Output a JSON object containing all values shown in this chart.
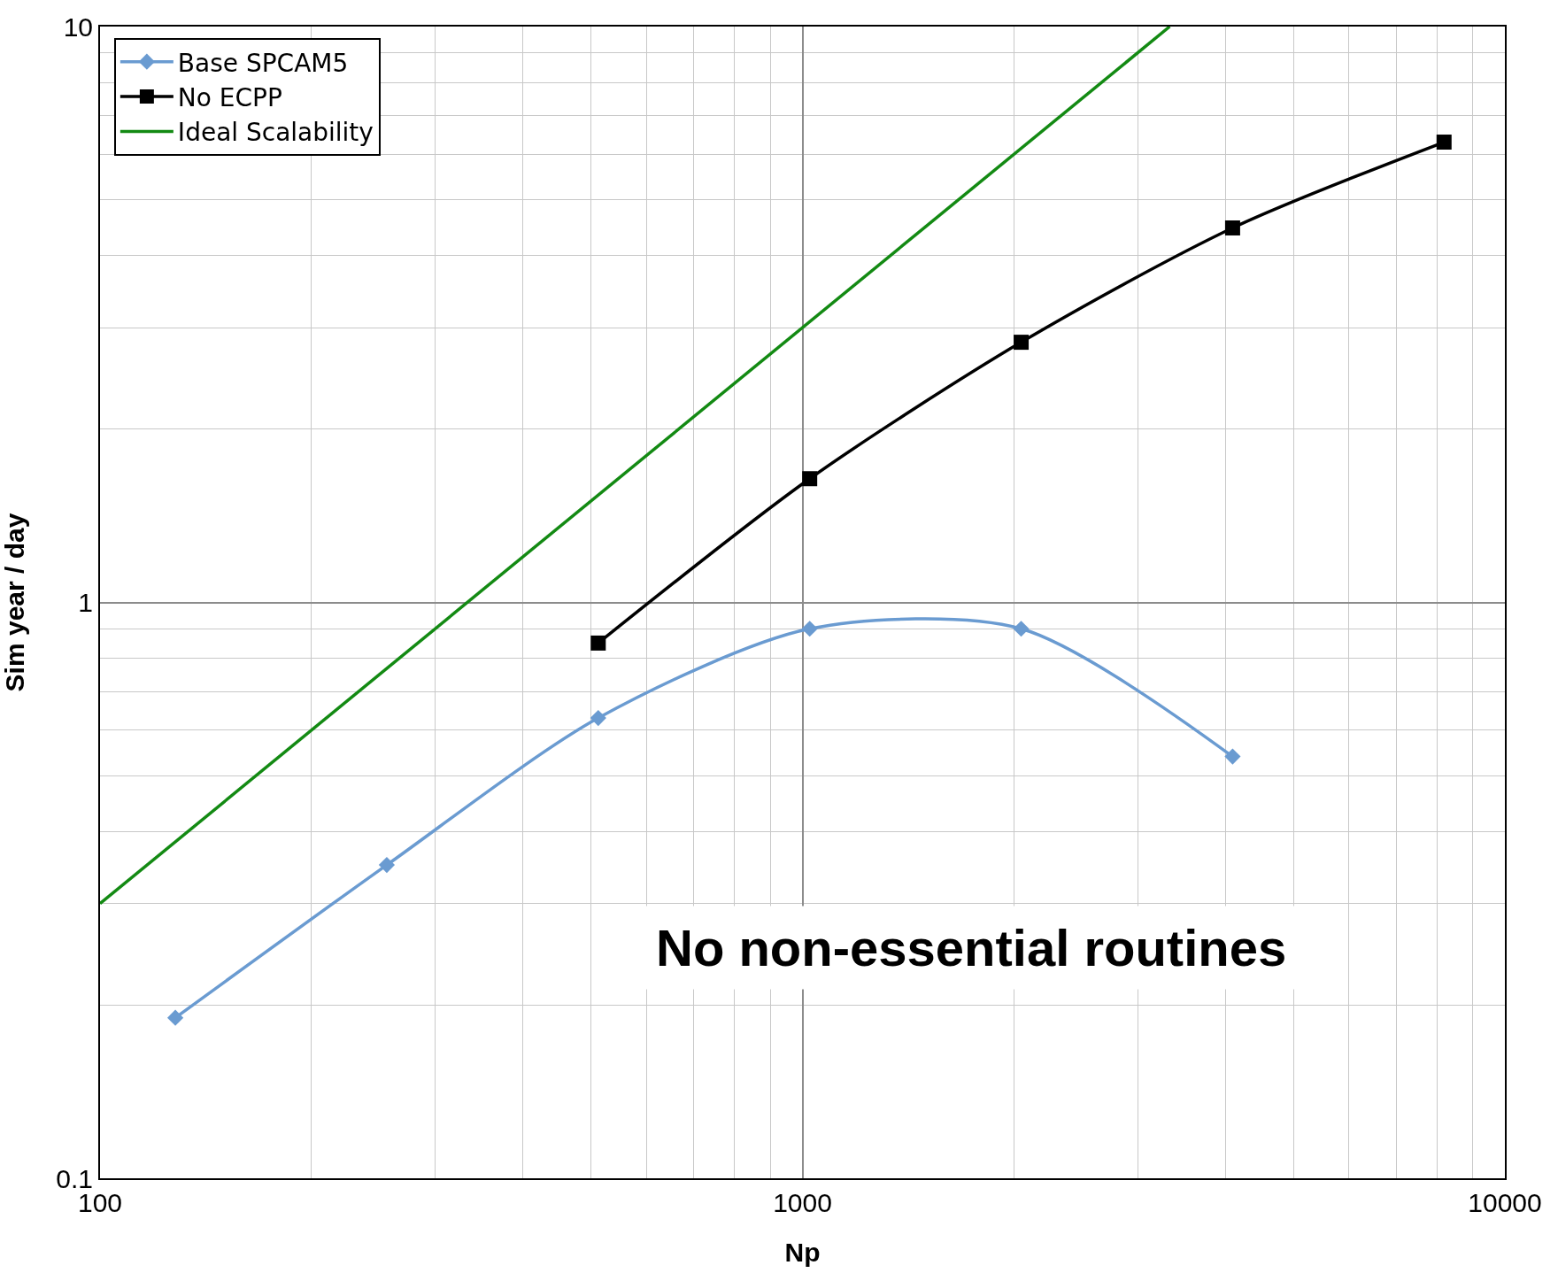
{
  "chart_data": {
    "type": "line",
    "xlabel": "Np",
    "ylabel": "Sim year / day",
    "log": "xy",
    "grid": true,
    "legend": "top left",
    "xlim": [
      100,
      10000
    ],
    "xticks": [
      100,
      1000,
      10000
    ],
    "ylim": [
      0.1,
      10
    ],
    "yticks": [
      0.1,
      1,
      10
    ],
    "series": [
      {
        "name": "Base SPCAM5",
        "color": "#6a9bd1",
        "marker": "diamond",
        "x": [
          128,
          256,
          512,
          1024,
          2048,
          4096
        ],
        "values": [
          0.19,
          0.35,
          0.63,
          0.9,
          0.9,
          0.54
        ]
      },
      {
        "name": "No ECPP",
        "color": "#000000",
        "marker": "square",
        "x": [
          512,
          1024,
          2048,
          4096,
          8192
        ],
        "values": [
          0.85,
          1.64,
          2.83,
          4.47,
          6.3
        ]
      },
      {
        "name": "Ideal Scalability",
        "color": "#138a13",
        "marker": "none",
        "x": [
          100,
          3333
        ],
        "values": [
          0.3,
          10
        ]
      }
    ],
    "annotations": [
      "No non-essential routines"
    ]
  }
}
